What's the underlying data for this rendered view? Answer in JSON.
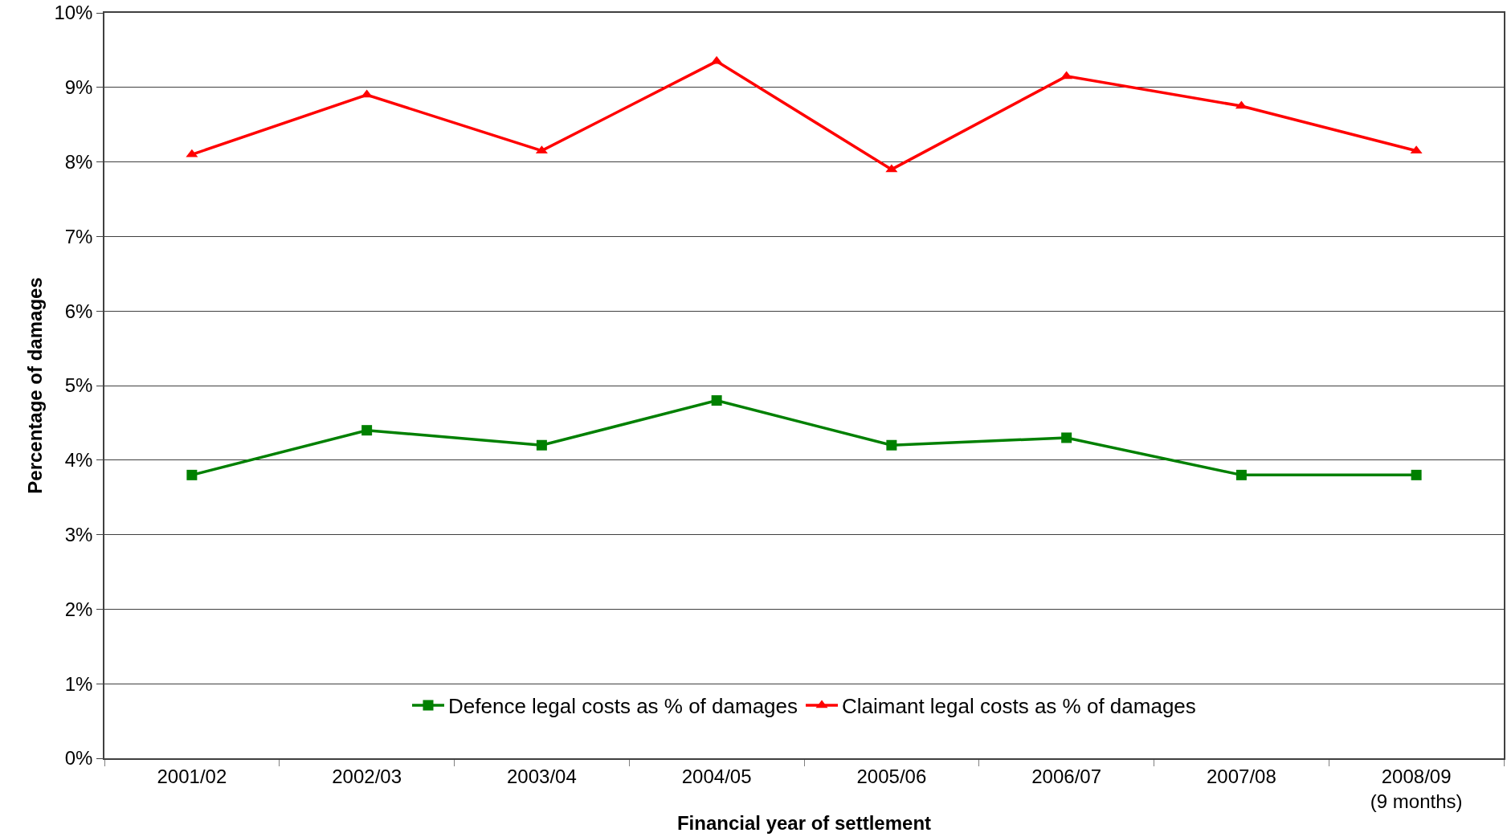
{
  "chart_data": {
    "type": "line",
    "categories": [
      "2001/02",
      "2002/03",
      "2003/04",
      "2004/05",
      "2005/06",
      "2006/07",
      "2007/08",
      "2008/09\n(9 months)"
    ],
    "series": [
      {
        "name": "Defence legal costs as % of damages",
        "color": "#008000",
        "marker": "square",
        "values": [
          3.8,
          4.4,
          4.2,
          4.8,
          4.2,
          4.3,
          3.8,
          3.8
        ]
      },
      {
        "name": "Claimant legal costs as % of damages",
        "color": "#ff0000",
        "marker": "triangle",
        "values": [
          8.1,
          8.9,
          8.15,
          9.35,
          7.9,
          9.15,
          8.75,
          8.15
        ]
      }
    ],
    "ylim": [
      0,
      10
    ],
    "yticks": [
      {
        "value": 0,
        "label": "0%"
      },
      {
        "value": 1,
        "label": "1%"
      },
      {
        "value": 2,
        "label": "2%"
      },
      {
        "value": 3,
        "label": "3%"
      },
      {
        "value": 4,
        "label": "4%"
      },
      {
        "value": 5,
        "label": "5%"
      },
      {
        "value": 6,
        "label": "6%"
      },
      {
        "value": 7,
        "label": "7%"
      },
      {
        "value": 8,
        "label": "8%"
      },
      {
        "value": 9,
        "label": "9%"
      },
      {
        "value": 10,
        "label": "10%"
      }
    ],
    "xlabel": "Financial year of settlement",
    "ylabel": "Percentage of damages",
    "grid": "y",
    "legend": "bottom",
    "line_style": "solid"
  }
}
